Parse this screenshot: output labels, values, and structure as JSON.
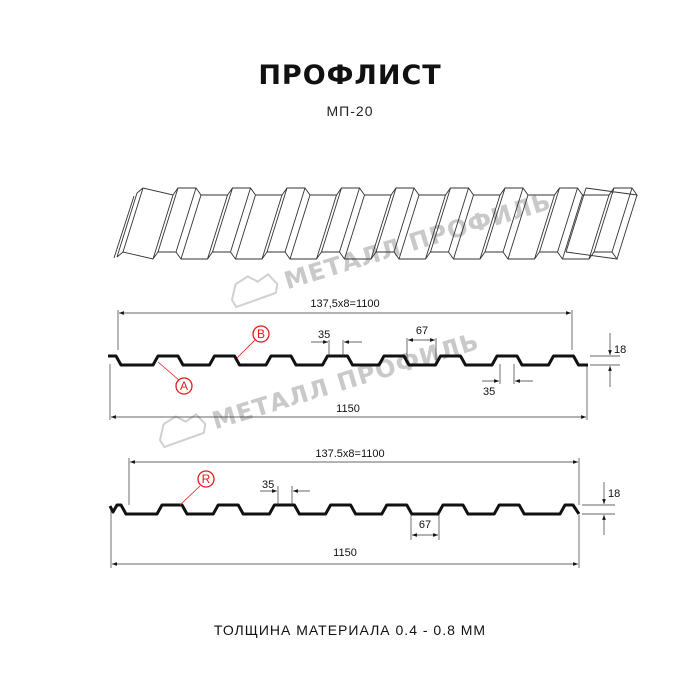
{
  "header": {
    "title": "ПРОФЛИСТ",
    "subtitle": "МП-20"
  },
  "watermark": {
    "text": "МЕТАЛЛ ПРОФИЛЬ",
    "color": "#c9c9c9"
  },
  "profile_a": {
    "pitch_label": "137,5x8=1100",
    "width_label": "1150",
    "rib_top_label": "35",
    "rib_bottom_label": "35",
    "gap_label": "67",
    "height_label": "18",
    "markers": [
      "A",
      "B"
    ]
  },
  "profile_r": {
    "pitch_label": "137.5x8=1100",
    "width_label": "1150",
    "rib_top_label": "35",
    "gap_label": "67",
    "height_label": "18",
    "markers": [
      "R"
    ]
  },
  "colors": {
    "profile": "#111111",
    "marker": "#e21b1b"
  },
  "footer": {
    "thickness": "ТОЛЩИНА МАТЕРИАЛА 0.4 - 0.8 ММ"
  }
}
